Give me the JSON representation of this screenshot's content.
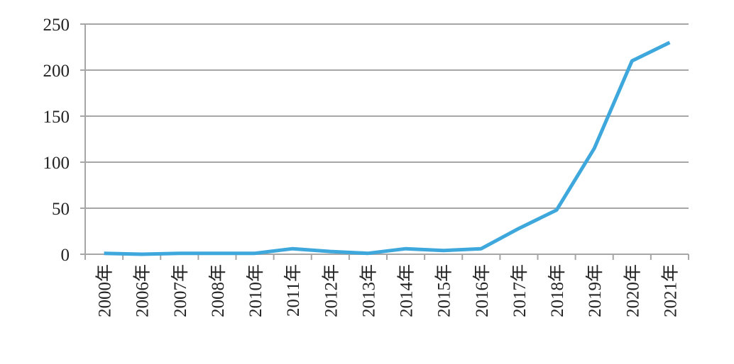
{
  "chart_data": {
    "type": "line",
    "categories": [
      "2000年",
      "2006年",
      "2007年",
      "2008年",
      "2010年",
      "2011年",
      "2012年",
      "2013年",
      "2014年",
      "2015年",
      "2016年",
      "2017年",
      "2018年",
      "2019年",
      "2020年",
      "2021年"
    ],
    "values": [
      1,
      0,
      1,
      1,
      1,
      6,
      3,
      1,
      6,
      4,
      6,
      28,
      48,
      115,
      210,
      230
    ],
    "color": "#3ea8dc",
    "ylim": [
      0,
      250
    ],
    "yticks": [
      0,
      50,
      100,
      150,
      200,
      250
    ],
    "grid": true
  }
}
